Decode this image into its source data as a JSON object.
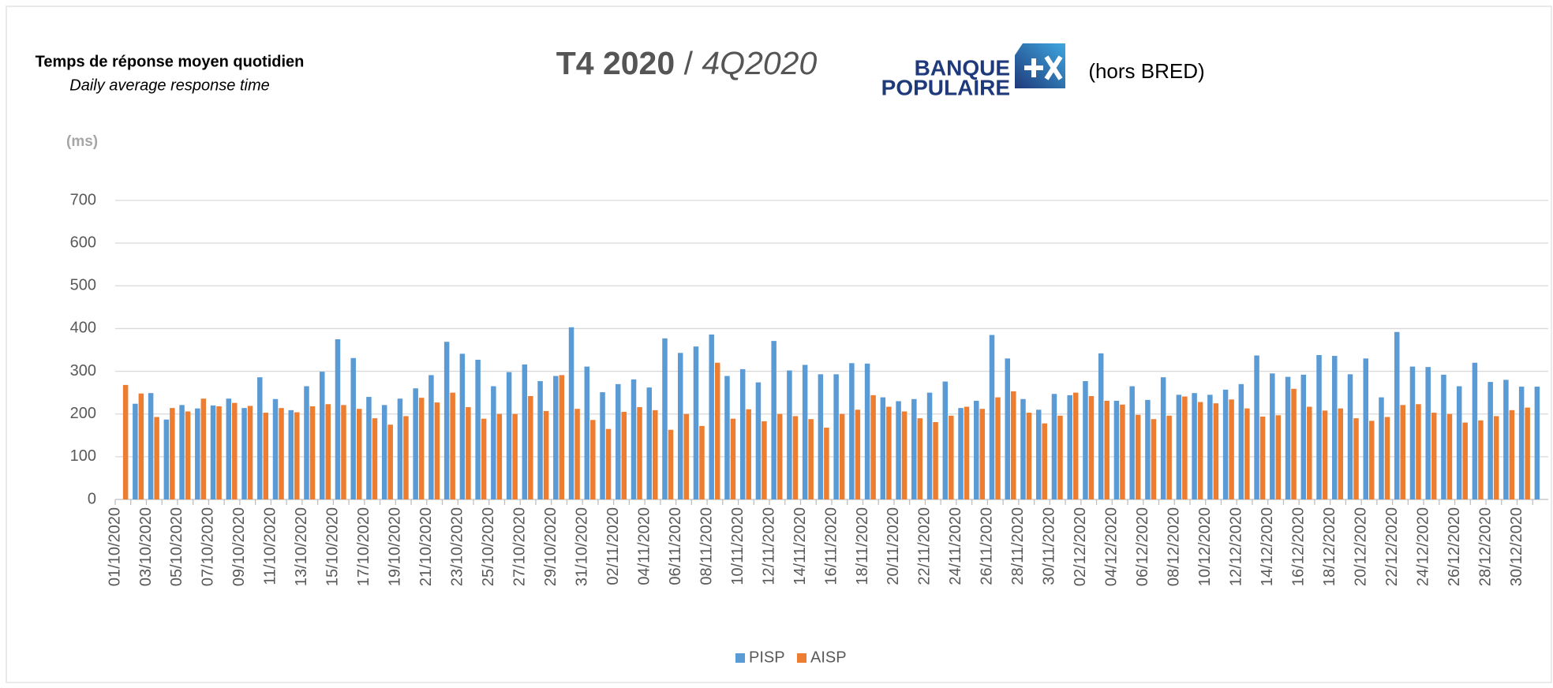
{
  "chart_data": {
    "type": "bar",
    "heading": "Temps de réponse moyen quotidien",
    "subheading": "Daily average response time",
    "title": "T4 2020",
    "title_separator": "/",
    "title_en": "4Q2020",
    "logo": {
      "line1": "BANQUE",
      "line2": "POPULAIRE"
    },
    "note": "(hors BRED)",
    "y_unit": "(ms)",
    "categories": [
      "01/10/2020",
      null,
      "03/10/2020",
      null,
      "05/10/2020",
      null,
      "07/10/2020",
      null,
      "09/10/2020",
      null,
      "11/10/2020",
      null,
      "13/10/2020",
      null,
      "15/10/2020",
      null,
      "17/10/2020",
      null,
      "19/10/2020",
      null,
      "21/10/2020",
      null,
      "23/10/2020",
      null,
      "25/10/2020",
      null,
      "27/10/2020",
      null,
      "29/10/2020",
      null,
      "31/10/2020",
      null,
      "02/11/2020",
      null,
      "04/11/2020",
      null,
      "06/11/2020",
      null,
      "08/11/2020",
      null,
      "10/11/2020",
      null,
      "12/11/2020",
      null,
      "14/11/2020",
      null,
      "16/11/2020",
      null,
      "18/11/2020",
      null,
      "20/11/2020",
      null,
      "22/11/2020",
      null,
      "24/11/2020",
      null,
      "26/11/2020",
      null,
      "28/11/2020",
      null,
      "30/11/2020",
      null,
      "02/12/2020",
      null,
      "04/12/2020",
      null,
      "06/12/2020",
      null,
      "08/12/2020",
      null,
      "10/12/2020",
      null,
      "12/12/2020",
      null,
      "14/12/2020",
      null,
      "16/12/2020",
      null,
      "18/12/2020",
      null,
      "20/12/2020",
      null,
      "22/12/2020",
      null,
      "24/12/2020",
      null,
      "26/12/2020",
      null,
      "28/12/2020",
      null,
      "30/12/2020",
      null
    ],
    "series": [
      {
        "name": "PISP",
        "color": "#5b9bd5",
        "values": [
          null,
          224,
          249,
          187,
          221,
          213,
          220,
          236,
          214,
          286,
          235,
          209,
          265,
          299,
          375,
          331,
          240,
          221,
          236,
          260,
          291,
          369,
          341,
          327,
          265,
          298,
          316,
          277,
          289,
          403,
          311,
          251,
          270,
          281,
          262,
          377,
          343,
          358,
          386,
          289,
          305,
          274,
          371,
          302,
          315,
          293,
          293,
          319,
          318,
          239,
          230,
          235,
          250,
          276,
          214,
          231,
          385,
          330,
          235,
          210,
          247,
          244,
          277,
          342,
          231,
          265,
          233,
          286,
          245,
          249,
          245,
          257,
          270,
          337,
          295,
          287,
          292,
          338,
          336,
          293,
          330,
          239,
          392,
          311,
          310,
          292,
          265,
          320,
          275,
          280,
          264,
          264
        ]
      },
      {
        "name": "AISP",
        "color": "#ed7d31",
        "values": [
          268,
          248,
          193,
          214,
          206,
          236,
          218,
          226,
          219,
          203,
          214,
          204,
          218,
          223,
          221,
          212,
          190,
          175,
          195,
          238,
          227,
          250,
          216,
          189,
          200,
          200,
          242,
          207,
          291,
          212,
          186,
          165,
          205,
          216,
          209,
          163,
          200,
          172,
          320,
          189,
          211,
          183,
          200,
          195,
          188,
          168,
          200,
          210,
          244,
          217,
          206,
          190,
          181,
          196,
          217,
          212,
          239,
          253,
          203,
          178,
          196,
          250,
          242,
          231,
          222,
          198,
          188,
          196,
          241,
          228,
          225,
          234,
          213,
          194,
          197,
          259,
          217,
          208,
          213,
          190,
          184,
          193,
          221,
          223,
          203,
          200,
          180,
          185,
          195,
          209,
          215,
          null
        ]
      }
    ],
    "ylim": [
      0,
      700
    ],
    "yticks": [
      0,
      100,
      200,
      300,
      400,
      500,
      600,
      700
    ],
    "grid": true,
    "legend": "bottom"
  }
}
